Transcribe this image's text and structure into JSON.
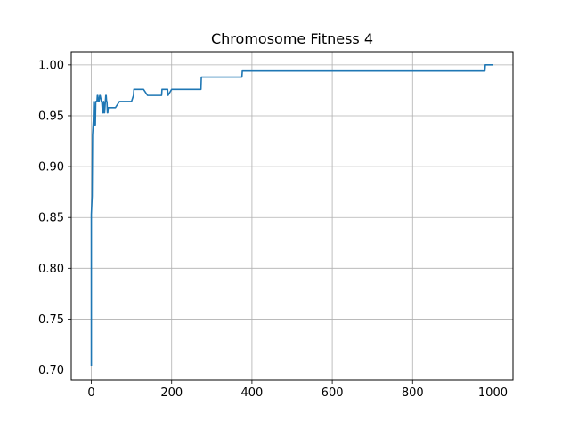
{
  "chart_data": {
    "type": "line",
    "title": "Chromosome Fitness 4",
    "xlabel": "",
    "ylabel": "",
    "xlim": [
      -50,
      1050
    ],
    "ylim": [
      0.69,
      1.013
    ],
    "grid": true,
    "xticks": [
      0,
      200,
      400,
      600,
      800,
      1000
    ],
    "xtick_labels": [
      "0",
      "200",
      "400",
      "600",
      "800",
      "1000"
    ],
    "yticks": [
      0.7,
      0.75,
      0.8,
      0.85,
      0.9,
      0.95,
      1.0
    ],
    "ytick_labels": [
      "0.70",
      "0.75",
      "0.80",
      "0.85",
      "0.90",
      "0.95",
      "1.00"
    ],
    "series": [
      {
        "color": "#1f77b4",
        "x": [
          0,
          0,
          1,
          2,
          3,
          4,
          5,
          6,
          7,
          8,
          10,
          11,
          12,
          14,
          15,
          16,
          18,
          19,
          21,
          22,
          25,
          26,
          28,
          29,
          30,
          31,
          32,
          33,
          36,
          37,
          38,
          39,
          40,
          41,
          42,
          43,
          45,
          46,
          48,
          50,
          55,
          60,
          70,
          80,
          100,
          105,
          106,
          110,
          130,
          140,
          175,
          176,
          180,
          190,
          191,
          200,
          210,
          273,
          274,
          300,
          375,
          376,
          400,
          500,
          600,
          700,
          800,
          900,
          980,
          981,
          1000
        ],
        "y": [
          0.704,
          0.853,
          0.862,
          0.871,
          0.931,
          0.938,
          0.945,
          0.964,
          0.964,
          0.941,
          0.941,
          0.964,
          0.964,
          0.964,
          0.97,
          0.97,
          0.964,
          0.964,
          0.97,
          0.97,
          0.964,
          0.964,
          0.953,
          0.953,
          0.964,
          0.964,
          0.953,
          0.953,
          0.97,
          0.97,
          0.964,
          0.964,
          0.953,
          0.953,
          0.958,
          0.958,
          0.958,
          0.958,
          0.958,
          0.958,
          0.958,
          0.958,
          0.964,
          0.964,
          0.964,
          0.97,
          0.976,
          0.976,
          0.976,
          0.97,
          0.97,
          0.976,
          0.976,
          0.976,
          0.97,
          0.976,
          0.976,
          0.976,
          0.988,
          0.988,
          0.988,
          0.994,
          0.994,
          0.994,
          0.994,
          0.994,
          0.994,
          0.994,
          0.994,
          1.0,
          1.0
        ]
      }
    ]
  }
}
